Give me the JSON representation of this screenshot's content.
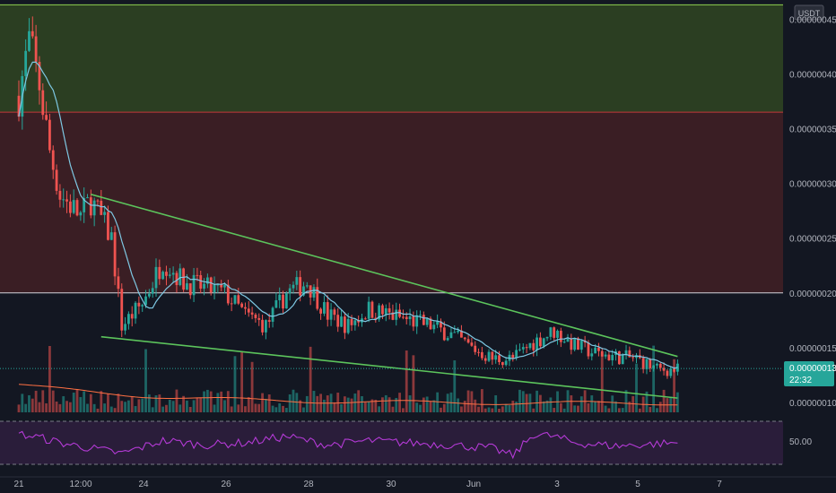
{
  "currency": "USDT",
  "colors": {
    "background": "#131722",
    "up": "#26a69a",
    "down": "#ef5350",
    "upper_zone": "#2b3e22",
    "mid_zone": "#3a1e24",
    "upper_zone_line": "#8fd14f",
    "mid_zone_line": "#c23a3a",
    "support_line": "#d1d4dc",
    "trendline": "#5cc45c",
    "sma": "#7ec8e3",
    "volume_ma": "#ff7043",
    "rsi": "#b43ad6",
    "rsi_band": "#2a1d3a",
    "price_tag": "#26a69a"
  },
  "price_axis": {
    "labels": [
      "0.00000045",
      "0.00000040",
      "0.00000035",
      "0.00000030",
      "0.00000025",
      "0.00000020",
      "0.00000015",
      "0.00000010"
    ],
    "current_price": "0.00000013",
    "countdown": "22:32"
  },
  "rsi_axis": {
    "label": "50.00"
  },
  "time_axis": {
    "labels": [
      "21",
      "12:00",
      "24",
      "26",
      "28",
      "30",
      "Jun",
      "3",
      "5",
      "7"
    ]
  },
  "chart_data": {
    "type": "candlestick",
    "title": "",
    "y_unit": "USDT",
    "ylim": [
      8.5e-08,
      4.65e-07
    ],
    "zones": [
      {
        "name": "",
        "from": 3.65e-07,
        "to": 4.63e-07
      },
      {
        "name": "",
        "from": 2e-07,
        "to": 3.65e-07
      }
    ],
    "horizontal_levels": [
      2e-07,
      3.65e-07,
      4.63e-07
    ],
    "trendlines": [
      {
        "from": [
          "May 22 18:00",
          2.9e-07
        ],
        "to": [
          "Jun 6 00:00",
          1.42e-07
        ]
      },
      {
        "from": [
          "May 23 00:00",
          1.6e-07
        ],
        "to": [
          "Jun 6 00:00",
          1.04e-07
        ]
      }
    ],
    "price_path": [
      [
        "May 21 00:00",
        3.8e-07
      ],
      [
        "May 21 06:00",
        4.3e-07
      ],
      [
        "May 21 12:00",
        3.9e-07
      ],
      [
        "May 21 18:00",
        3.3e-07
      ],
      [
        "May 22 00:00",
        2.9e-07
      ],
      [
        "May 22 12:00",
        2.7e-07
      ],
      [
        "May 22 18:00",
        2.85e-07
      ],
      [
        "May 23 06:00",
        2.5e-07
      ],
      [
        "May 23 12:00",
        1.7e-07
      ],
      [
        "May 24 00:00",
        1.9e-07
      ],
      [
        "May 24 12:00",
        2.3e-07
      ],
      [
        "May 25 00:00",
        2.1e-07
      ],
      [
        "May 26 00:00",
        2e-07
      ],
      [
        "May 26 12:00",
        1.8e-07
      ],
      [
        "May 27 00:00",
        1.7e-07
      ],
      [
        "May 27 12:00",
        2e-07
      ],
      [
        "May 28 00:00",
        2.1e-07
      ],
      [
        "May 28 12:00",
        1.8e-07
      ],
      [
        "May 29 00:00",
        1.7e-07
      ],
      [
        "May 29 12:00",
        1.85e-07
      ],
      [
        "May 30 00:00",
        1.8e-07
      ],
      [
        "May 30 12:00",
        1.75e-07
      ],
      [
        "May 31 00:00",
        1.7e-07
      ],
      [
        "May 31 12:00",
        1.62e-07
      ],
      [
        "Jun 1 00:00",
        1.5e-07
      ],
      [
        "Jun 1 12:00",
        1.4e-07
      ],
      [
        "Jun 2 00:00",
        1.4e-07
      ],
      [
        "Jun 2 12:00",
        1.55e-07
      ],
      [
        "Jun 3 00:00",
        1.65e-07
      ],
      [
        "Jun 3 12:00",
        1.52e-07
      ],
      [
        "Jun 4 00:00",
        1.45e-07
      ],
      [
        "Jun 4 12:00",
        1.42e-07
      ],
      [
        "Jun 5 00:00",
        1.4e-07
      ],
      [
        "Jun 5 12:00",
        1.3e-07
      ],
      [
        "Jun 6 00:00",
        1.3e-07
      ]
    ],
    "rsi_path": [
      [
        "May 21 00:00",
        58
      ],
      [
        "May 21 12:00",
        55
      ],
      [
        "May 22 00:00",
        50
      ],
      [
        "May 23 12:00",
        40
      ],
      [
        "May 24 12:00",
        52
      ],
      [
        "May 25 12:00",
        48
      ],
      [
        "May 26 12:00",
        50
      ],
      [
        "May 27 12:00",
        56
      ],
      [
        "May 28 12:00",
        48
      ],
      [
        "May 29 12:00",
        52
      ],
      [
        "May 30 12:00",
        50
      ],
      [
        "May 31 12:00",
        48
      ],
      [
        "Jun 1 12:00",
        45
      ],
      [
        "Jun 2 00:00",
        38
      ],
      [
        "Jun 2 12:00",
        58
      ],
      [
        "Jun 3 00:00",
        56
      ],
      [
        "Jun 3 12:00",
        50
      ],
      [
        "Jun 4 12:00",
        47
      ],
      [
        "Jun 5 12:00",
        49
      ],
      [
        "Jun 6 00:00",
        50
      ]
    ],
    "rsi_bands": [
      30,
      70
    ]
  }
}
